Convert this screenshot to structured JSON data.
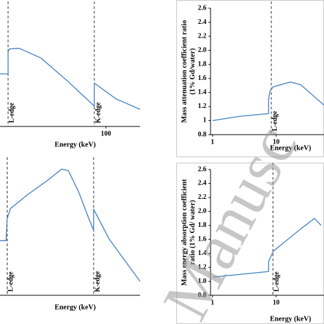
{
  "chart_data": [
    {
      "type": "line",
      "xlabel": "Energy (keV)",
      "log_x": true,
      "xlim": [
        6.4,
        243
      ],
      "xticks": [
        100
      ],
      "ylim": [
        0.8,
        2.6
      ],
      "edges": [
        {
          "x": 7.9,
          "label": "L-edge"
        },
        {
          "x": 74,
          "label": "K-edge"
        }
      ],
      "series": [
        {
          "color": "#4a86c5",
          "x": [
            6.4,
            7.7,
            7.9,
            7.9,
            8.2,
            10.5,
            18.6,
            37.7,
            74,
            74,
            130,
            243
          ],
          "values": [
            1.6,
            1.6,
            1.6,
            1.94,
            1.98,
            1.99,
            1.84,
            1.48,
            1.11,
            1.46,
            1.22,
            1.06
          ]
        }
      ]
    },
    {
      "type": "line",
      "xlabel": "Energy (keV)",
      "ylabel": [
        "Mass attenuation coefficient ratio",
        "(1% Gd/water)"
      ],
      "log_x": true,
      "xlim": [
        0.93,
        56.6
      ],
      "xticks": [
        1,
        10
      ],
      "ylim": [
        0.8,
        2.6
      ],
      "yticks": [
        {
          "value": 0.8,
          "label": "0.8"
        },
        1,
        {
          "value": 1.2,
          "label": "1.2"
        },
        {
          "value": 1.4,
          "label": "1.4"
        },
        {
          "value": 1.6,
          "label": "1.6"
        },
        {
          "value": 1.8,
          "label": "1.8"
        },
        {
          "value": 2,
          "label": "2.0"
        },
        {
          "value": 2.2,
          "label": "2.2"
        },
        {
          "value": 2.4,
          "label": "2.4"
        },
        {
          "value": 2.6,
          "label": "2.6"
        }
      ],
      "edges": [
        {
          "x": 8.4,
          "label": "L-edge"
        }
      ],
      "series": [
        {
          "color": "#4a86c5",
          "x": [
            1,
            2.6,
            7.6,
            7.6,
            8.0,
            9.0,
            16.8,
            24.4,
            40,
            56.6
          ],
          "values": [
            1.0,
            1.06,
            1.1,
            1.3,
            1.42,
            1.48,
            1.55,
            1.51,
            1.34,
            1.22
          ]
        }
      ]
    },
    {
      "type": "line",
      "xlabel": "Energy (keV)",
      "log_x": true,
      "xlim": [
        6.4,
        243
      ],
      "ylim": [
        0.8,
        2.6
      ],
      "edges": [
        {
          "x": 7.7,
          "label": "L-edge"
        },
        {
          "x": 72.7,
          "label": "K-edge"
        }
      ],
      "series": [
        {
          "color": "#4a86c5",
          "x": [
            6.4,
            7.5,
            7.7,
            8.4,
            13.1,
            22.2,
            31.6,
            37.7,
            49.2,
            64.3,
            72.7,
            72.7,
            109,
            243
          ],
          "values": [
            1.55,
            1.55,
            1.85,
            1.99,
            2.18,
            2.38,
            2.53,
            2.51,
            2.22,
            1.85,
            1.69,
            1.98,
            1.57,
            0.99
          ]
        }
      ]
    },
    {
      "type": "line",
      "xlabel": "Energy (keV)",
      "ylabel": [
        "Mass energy absorption coefficient",
        "ratio (1% Gd/ water)"
      ],
      "log_x": true,
      "xlim": [
        0.93,
        56.6
      ],
      "xticks": [
        1,
        10
      ],
      "ylim": [
        0.8,
        2.6
      ],
      "yticks": [
        {
          "value": 0.8,
          "label": "0.8"
        },
        {
          "value": 1,
          "label": "1.0"
        },
        {
          "value": 1.2,
          "label": "1.2"
        },
        {
          "value": 1.4,
          "label": "1.4"
        },
        {
          "value": 1.6,
          "label": "1.6"
        },
        {
          "value": 1.8,
          "label": "1.8"
        },
        {
          "value": 2,
          "label": "2.0"
        },
        {
          "value": 2.2,
          "label": "2.2"
        },
        {
          "value": 2.4,
          "label": "2.4"
        },
        {
          "value": 2.6,
          "label": "2.6"
        }
      ],
      "edges": [
        {
          "x": 8.9,
          "label": "L-edge"
        }
      ],
      "series": [
        {
          "color": "#4a86c5",
          "x": [
            1,
            7.6,
            7.6,
            8.3,
            9.0,
            24.4,
            40,
            51
          ],
          "values": [
            1.06,
            1.14,
            1.28,
            1.36,
            1.43,
            1.75,
            1.9,
            1.8
          ]
        }
      ]
    }
  ],
  "watermark": "Manusc"
}
